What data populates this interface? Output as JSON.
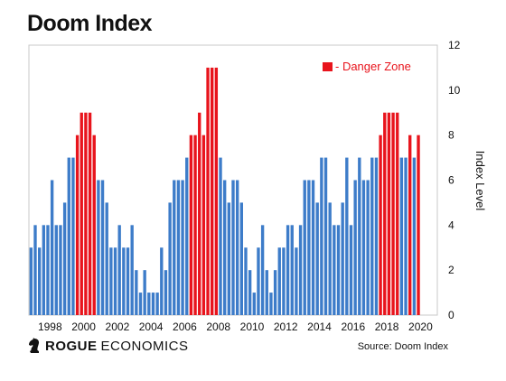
{
  "title": "Doom Index",
  "brand": {
    "name_bold": "ROGUE",
    "name_rest": "ECONOMICS",
    "icon": "knight-chess-icon"
  },
  "source": "Source: Doom Index",
  "colors": {
    "normal": "#3d7cc9",
    "danger": "#e8141c",
    "danger_dark": "#c8212a"
  },
  "chart_data": {
    "type": "bar",
    "title": "Doom Index",
    "ylabel": "Index Level",
    "xlabel": "",
    "ylim": [
      0,
      12
    ],
    "yticks": [
      0,
      2,
      4,
      6,
      8,
      10,
      12
    ],
    "xlim": [
      1996.75,
      2021.0
    ],
    "xticks": [
      "1998",
      "2000",
      "2002",
      "2004",
      "2006",
      "2008",
      "2010",
      "2012",
      "2014",
      "2016",
      "2018",
      "2020"
    ],
    "legend": {
      "label": "- Danger Zone",
      "position": "top-right"
    },
    "grid": false,
    "x_start": 1996.75,
    "x_step": 0.25,
    "values": [
      3,
      4,
      3,
      4,
      4,
      6,
      4,
      4,
      5,
      7,
      7,
      8,
      9,
      9,
      9,
      8,
      6,
      6,
      5,
      3,
      3,
      4,
      3,
      3,
      4,
      2,
      1,
      2,
      1,
      1,
      1,
      3,
      2,
      5,
      6,
      6,
      6,
      7,
      8,
      8,
      9,
      8,
      11,
      11,
      11,
      7,
      6,
      5,
      6,
      6,
      5,
      3,
      2,
      1,
      3,
      4,
      2,
      1,
      2,
      3,
      3,
      4,
      4,
      3,
      4,
      6,
      6,
      6,
      5,
      7,
      7,
      5,
      4,
      4,
      5,
      7,
      4,
      6,
      7,
      6,
      6,
      7,
      7,
      8,
      9,
      9,
      9,
      9,
      7,
      7,
      8,
      7,
      8
    ],
    "danger": [
      0,
      0,
      0,
      0,
      0,
      0,
      0,
      0,
      0,
      0,
      0,
      1,
      1,
      1,
      1,
      1,
      0,
      0,
      0,
      0,
      0,
      0,
      0,
      0,
      0,
      0,
      0,
      0,
      0,
      0,
      0,
      0,
      0,
      0,
      0,
      0,
      0,
      0,
      1,
      1,
      1,
      1,
      1,
      1,
      1,
      0,
      0,
      0,
      0,
      0,
      0,
      0,
      0,
      0,
      0,
      0,
      0,
      0,
      0,
      0,
      0,
      0,
      0,
      0,
      0,
      0,
      0,
      0,
      0,
      0,
      0,
      0,
      0,
      0,
      0,
      0,
      0,
      0,
      0,
      0,
      0,
      0,
      0,
      1,
      1,
      1,
      1,
      1,
      0,
      0,
      1,
      0,
      1
    ]
  }
}
